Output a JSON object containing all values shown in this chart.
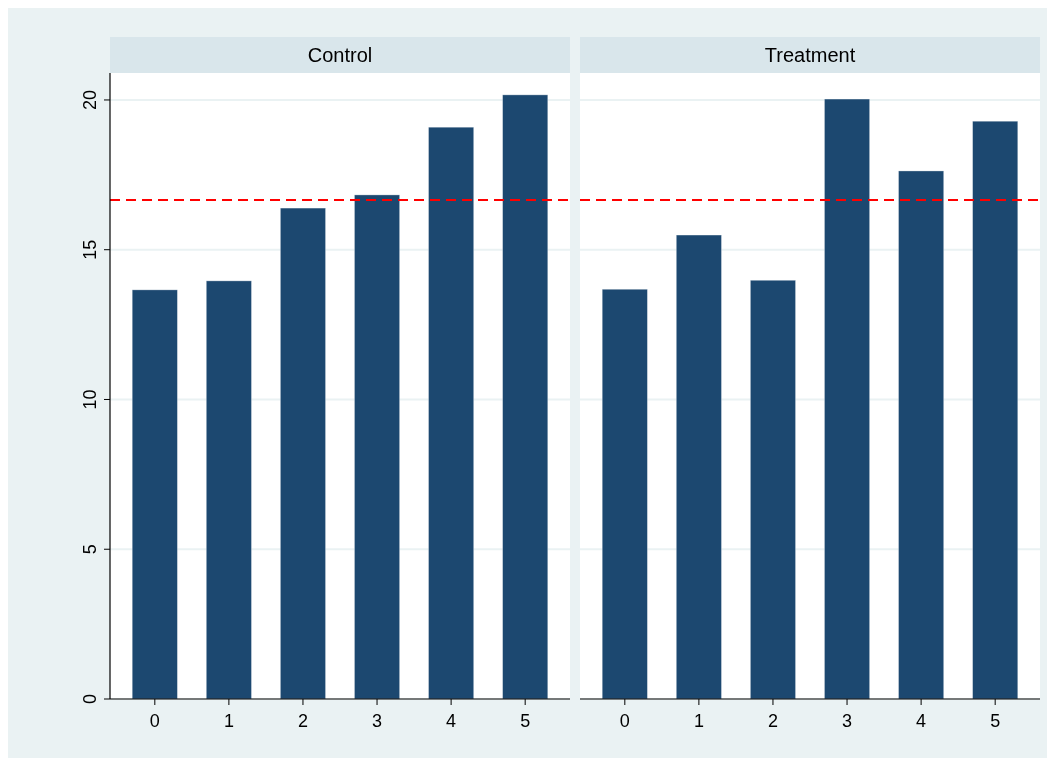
{
  "chart_data": [
    {
      "type": "bar",
      "title": "Control",
      "categories": [
        "0",
        "1",
        "2",
        "3",
        "4",
        "5"
      ],
      "values": [
        13.66,
        13.96,
        16.39,
        16.83,
        19.09,
        20.17
      ],
      "color": "#1c4870",
      "ylim": [
        0,
        20.9
      ],
      "yticks": [
        0,
        5,
        10,
        15,
        20
      ],
      "grid": "y",
      "ref_lines": [
        {
          "axis": "y",
          "value": 16.66,
          "color": "#ff0000",
          "line_style": "dashed"
        }
      ]
    },
    {
      "type": "bar",
      "title": "Treatment",
      "categories": [
        "0",
        "1",
        "2",
        "3",
        "4",
        "5"
      ],
      "values": [
        13.68,
        15.49,
        13.98,
        20.03,
        17.63,
        19.29
      ],
      "color": "#1c4870",
      "ylim": [
        0,
        20.9
      ],
      "yticks": [
        0,
        5,
        10,
        15,
        20
      ],
      "grid": "y",
      "tick_labels": "x",
      "ref_lines": [
        {
          "axis": "y",
          "value": 16.66,
          "color": "#ff0000",
          "line_style": "dashed"
        }
      ]
    }
  ]
}
